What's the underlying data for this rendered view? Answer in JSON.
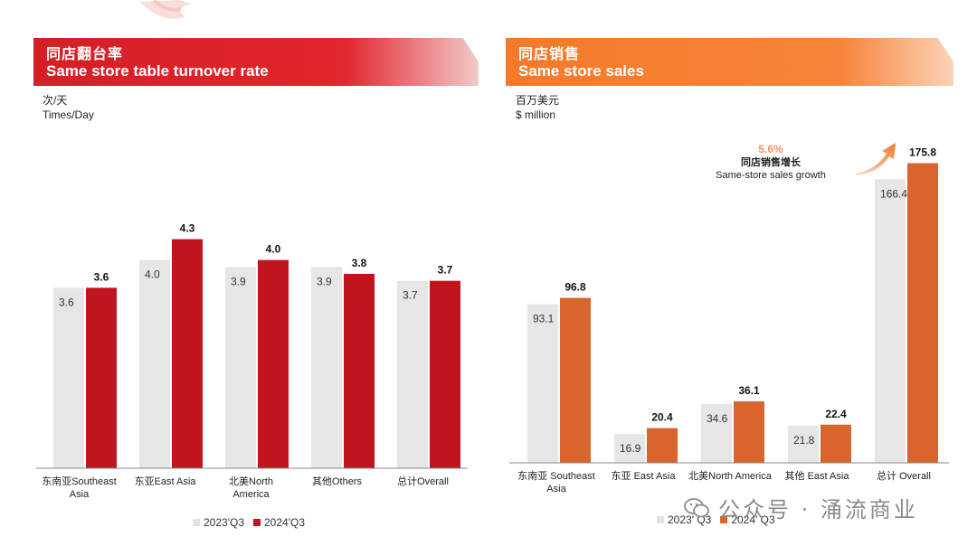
{
  "left_panel": {
    "title_cn": "同店翻台率",
    "title_en": "Same store table turnover rate",
    "unit_cn": "次/天",
    "unit_en": "Times/Day",
    "color": "#d41f26"
  },
  "right_panel": {
    "title_cn": "同店销售",
    "title_en": "Same store sales",
    "unit_cn": "百万美元",
    "unit_en": "$ million",
    "color": "#f47a2a",
    "growth_pct": "5.6%",
    "growth_cn": "同店销售增长",
    "growth_en": "Same-store sales growth"
  },
  "legend_left": {
    "a": "2023'Q3",
    "b": "2024'Q3"
  },
  "legend_right": {
    "a": "2023' Q3",
    "b": "2024' Q3"
  },
  "watermark": "公众号 · 涌流商业",
  "chart_data": [
    {
      "type": "bar",
      "title": "Same store table turnover rate",
      "ylabel": "Times/Day",
      "categories": [
        [
          "东南亚Southeast",
          "Asia"
        ],
        [
          "东亚East Asia"
        ],
        [
          "北美North",
          "America"
        ],
        [
          "其他Others"
        ],
        [
          "总计Overall"
        ]
      ],
      "series": [
        {
          "name": "2023'Q3",
          "values": [
            3.6,
            4.0,
            3.9,
            3.9,
            3.7
          ],
          "labels": [
            "3.6",
            "4.0",
            "3.9",
            "3.9",
            "3.7"
          ],
          "color": "#e6e6e6"
        },
        {
          "name": "2024'Q3",
          "values": [
            3.6,
            4.3,
            4.0,
            3.8,
            3.7
          ],
          "labels": [
            "3.6",
            "4.3",
            "4.0",
            "3.8",
            "3.7"
          ],
          "color": "#c0141f"
        }
      ]
    },
    {
      "type": "bar",
      "title": "Same store sales",
      "ylabel": "$ million",
      "categories": [
        [
          "东南亚 Southeast",
          "Asia"
        ],
        [
          "东亚 East Asia"
        ],
        [
          "北美North America"
        ],
        [
          "其他 East Asia"
        ],
        [
          "总计 Overall"
        ]
      ],
      "series": [
        {
          "name": "2023' Q3",
          "values": [
            93.1,
            16.9,
            34.6,
            21.8,
            166.4
          ],
          "labels": [
            "93.1",
            "16.9",
            "34.6",
            "21.8",
            "166.4"
          ],
          "color": "#e6e6e6"
        },
        {
          "name": "2024' Q3",
          "values": [
            96.8,
            20.4,
            36.1,
            22.4,
            175.8
          ],
          "labels": [
            "96.8",
            "20.4",
            "36.1",
            "22.4",
            "175.8"
          ],
          "color": "#d8662c"
        }
      ]
    }
  ]
}
